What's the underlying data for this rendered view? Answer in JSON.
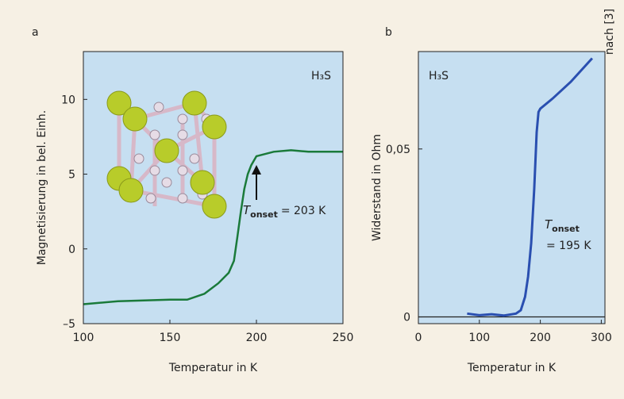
{
  "credit": "nach [3]",
  "chart_data": [
    {
      "type": "line",
      "panel": "a",
      "x_label": "Temperatur in K",
      "y_label": "Magnetisierung in bel. Einh.",
      "annotations": [
        {
          "text": "H₃S"
        },
        {
          "symbol": "T",
          "subscript": "onset",
          "text": "= 203 K"
        }
      ],
      "xlim": [
        100,
        250
      ],
      "xticks": [
        100,
        150,
        200,
        250
      ],
      "ylim": [
        -5,
        13.2
      ],
      "yticks": [
        {
          "value": -5,
          "label": "–5"
        },
        0,
        5,
        10
      ],
      "series": [
        {
          "color": "#1a7a3a",
          "x": [
            100,
            120,
            150,
            160,
            170,
            178,
            184,
            187,
            189,
            191,
            193,
            195,
            197,
            200,
            210,
            220,
            230,
            250
          ],
          "values": [
            -3.7,
            -3.5,
            -3.4,
            -3.4,
            -3.0,
            -2.3,
            -1.6,
            -0.8,
            0.8,
            2.5,
            4.0,
            5.0,
            5.6,
            6.2,
            6.5,
            6.6,
            6.5,
            6.5
          ]
        }
      ]
    },
    {
      "type": "line",
      "panel": "b",
      "x_label": "Temperatur in K",
      "y_label": "Widerstand in Ohm",
      "annotations": [
        {
          "text": "H₃S"
        },
        {
          "symbol": "T",
          "subscript": "onset",
          "text": "= 195 K"
        }
      ],
      "xlim": [
        0,
        306
      ],
      "xticks": [
        0,
        100,
        200,
        300
      ],
      "ylim": [
        -0.002,
        0.079
      ],
      "yticks": [
        0,
        {
          "value": 0.05,
          "label": "0,05"
        }
      ],
      "series": [
        {
          "color": "#2a4fb0",
          "x": [
            80,
            100,
            120,
            140,
            160,
            168,
            175,
            180,
            185,
            190,
            194,
            197,
            200,
            220,
            250,
            285
          ],
          "values": [
            0.001,
            0.0005,
            0.0008,
            0.0004,
            0.001,
            0.002,
            0.006,
            0.012,
            0.022,
            0.038,
            0.055,
            0.061,
            0.062,
            0.065,
            0.07,
            0.077
          ]
        }
      ]
    }
  ]
}
